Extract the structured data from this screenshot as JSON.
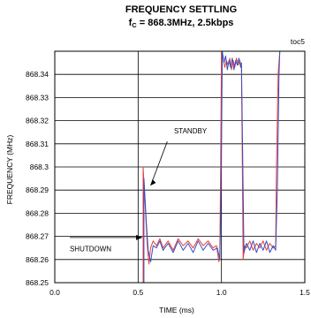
{
  "chart_data": {
    "type": "line",
    "title": "FREQUENCY SETTLING",
    "subtitle_prefix": "f",
    "subtitle_sub": "C",
    "subtitle_rest": " = 868.3MHz, 2.5kbps",
    "corner_tag": "toc5",
    "xlabel": "TIME (ms)",
    "ylabel": "FREQUENCY (MHz)",
    "xlim": [
      0.0,
      1.5
    ],
    "ylim": [
      868.25,
      868.35
    ],
    "x_ticks": [
      "0.0",
      "0.5",
      "1.0",
      "1.5"
    ],
    "y_ticks": [
      "868.25",
      "868.26",
      "868.27",
      "868.28",
      "868.29",
      "868.3",
      "868.31",
      "868.32",
      "868.33",
      "868.34"
    ],
    "grid": true,
    "annotations": [
      {
        "text": "STANDBY",
        "x": 0.62,
        "y": 868.301
      },
      {
        "text": "SHUTDOWN",
        "x": 0.55,
        "y": 868.269
      }
    ],
    "series": [
      {
        "color": "#e8403a",
        "x": [
          0.0,
          0.53,
          0.53,
          0.545,
          0.555,
          0.565,
          0.575,
          0.59,
          0.61,
          0.63,
          0.65,
          0.68,
          0.71,
          0.74,
          0.77,
          0.8,
          0.83,
          0.86,
          0.89,
          0.92,
          0.95,
          0.97,
          0.985,
          0.99,
          0.995,
          1.0,
          1.01,
          1.02,
          1.03,
          1.04,
          1.05,
          1.06,
          1.07,
          1.08,
          1.09,
          1.1,
          1.11,
          1.12,
          1.125,
          1.13,
          1.14,
          1.15,
          1.17,
          1.19,
          1.21,
          1.23,
          1.25,
          1.27,
          1.29,
          1.31,
          1.325,
          1.33,
          1.34,
          1.35
        ],
        "y": [
          868.25,
          868.25,
          868.3,
          868.28,
          868.266,
          868.258,
          868.265,
          868.268,
          868.266,
          868.269,
          868.265,
          868.268,
          868.264,
          868.269,
          868.266,
          868.268,
          868.265,
          868.269,
          868.266,
          868.268,
          868.265,
          868.266,
          868.259,
          868.262,
          868.3,
          868.35,
          868.347,
          868.343,
          868.346,
          868.344,
          868.347,
          868.342,
          868.346,
          868.343,
          868.347,
          868.344,
          868.346,
          868.343,
          868.3,
          868.26,
          868.266,
          868.265,
          868.268,
          868.264,
          868.267,
          868.265,
          868.268,
          868.264,
          868.267,
          868.265,
          868.266,
          868.3,
          868.34,
          868.35
        ]
      },
      {
        "color": "#3a4cc0",
        "x": [
          0.0,
          0.535,
          0.535,
          0.55,
          0.56,
          0.575,
          0.59,
          0.61,
          0.63,
          0.65,
          0.68,
          0.71,
          0.74,
          0.77,
          0.8,
          0.83,
          0.86,
          0.89,
          0.92,
          0.95,
          0.975,
          0.99,
          0.998,
          1.005,
          1.015,
          1.025,
          1.035,
          1.045,
          1.055,
          1.065,
          1.075,
          1.085,
          1.095,
          1.105,
          1.115,
          1.12,
          1.13,
          1.135,
          1.15,
          1.17,
          1.19,
          1.21,
          1.23,
          1.25,
          1.27,
          1.29,
          1.31,
          1.325,
          1.335,
          1.345,
          1.35
        ],
        "y": [
          868.25,
          868.25,
          868.295,
          868.275,
          868.264,
          868.259,
          868.266,
          868.265,
          868.268,
          868.264,
          868.267,
          868.263,
          868.268,
          868.264,
          868.267,
          868.263,
          868.268,
          868.264,
          868.267,
          868.264,
          868.265,
          868.26,
          868.29,
          868.35,
          868.345,
          868.348,
          868.342,
          868.346,
          868.343,
          868.347,
          868.342,
          868.346,
          868.344,
          868.347,
          868.343,
          868.345,
          868.29,
          868.263,
          868.267,
          868.264,
          868.268,
          868.263,
          868.267,
          868.264,
          868.268,
          868.263,
          868.266,
          868.264,
          868.29,
          868.34,
          868.35
        ]
      }
    ]
  }
}
